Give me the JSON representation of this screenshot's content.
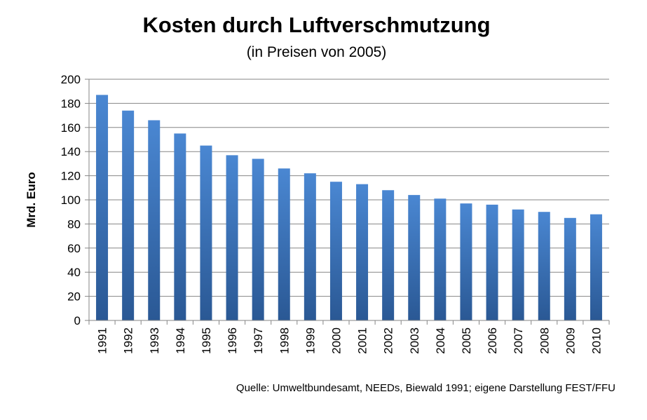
{
  "chart_data": {
    "type": "bar",
    "title": "Kosten durch Luftverschmutzung",
    "subtitle": "(in Preisen von 2005)",
    "ylabel": "Mrd. Euro",
    "xlabel": "",
    "categories": [
      "1991",
      "1992",
      "1993",
      "1994",
      "1995",
      "1996",
      "1997",
      "1998",
      "1999",
      "2000",
      "2001",
      "2002",
      "2003",
      "2004",
      "2005",
      "2006",
      "2007",
      "2008",
      "2009",
      "2010"
    ],
    "values": [
      187,
      174,
      166,
      155,
      145,
      137,
      134,
      126,
      122,
      115,
      113,
      108,
      104,
      101,
      97,
      96,
      92,
      90,
      85,
      88
    ],
    "ylim": [
      0,
      200
    ],
    "yticks": [
      0,
      20,
      40,
      60,
      80,
      100,
      120,
      140,
      160,
      180,
      200
    ],
    "grid": true,
    "legend": "none",
    "bar_color_top": "#4a87d2",
    "bar_color_bottom": "#2a5894",
    "source": "Quelle: Umweltbundesamt, NEEDs, Biewald 1991; eigene Darstellung FEST/FFU"
  }
}
